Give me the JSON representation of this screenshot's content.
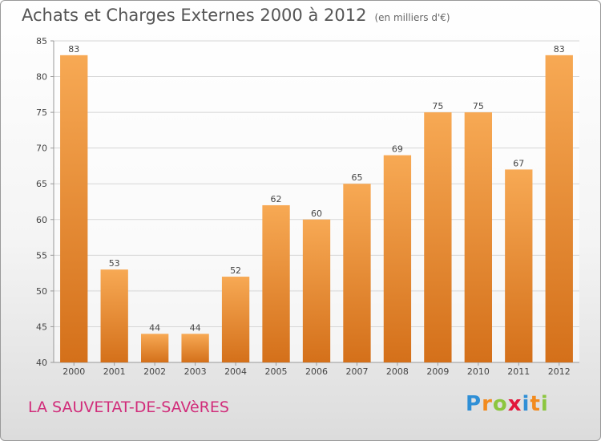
{
  "title": "Achats et Charges Externes 2000 à 2012",
  "subtitle": "(en milliers d'€)",
  "place": "LA SAUVETAT-DE-SAVèRES",
  "logo": {
    "letters": [
      "P",
      "r",
      "o",
      "x",
      "i",
      "t",
      "i"
    ],
    "colors": [
      "#2f8fd6",
      "#f28b1e",
      "#8cc63f",
      "#e2173a",
      "#2f8fd6",
      "#f28b1e",
      "#8cc63f"
    ]
  },
  "colors": {
    "bar_top": "#f7a954",
    "bar_bottom": "#d4701a",
    "grid": "#d6d6d6",
    "axis_text": "#444444"
  },
  "chart_data": {
    "type": "bar",
    "categories": [
      "2000",
      "2001",
      "2002",
      "2003",
      "2004",
      "2005",
      "2006",
      "2007",
      "2008",
      "2009",
      "2010",
      "2011",
      "2012"
    ],
    "values": [
      83,
      53,
      44,
      44,
      52,
      62,
      60,
      65,
      69,
      75,
      75,
      67,
      83
    ],
    "title": "Achats et Charges Externes 2000 à 2012",
    "ylabel": "",
    "xlabel": "",
    "ylim": [
      40,
      85
    ],
    "yticks": [
      40,
      45,
      50,
      55,
      60,
      65,
      70,
      75,
      80,
      85
    ],
    "grid": true
  }
}
